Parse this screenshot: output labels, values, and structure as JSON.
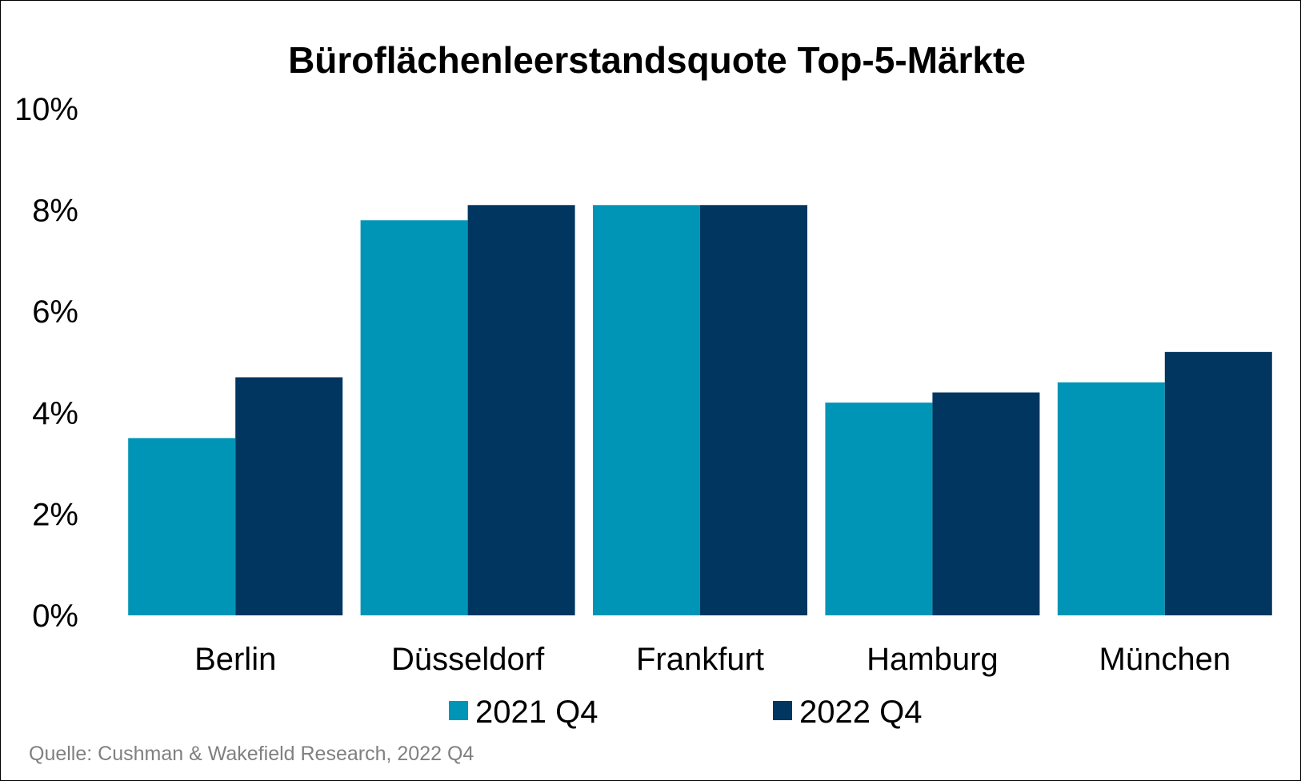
{
  "chart_data": {
    "type": "bar",
    "title": "Büroflächenleerstandsquote Top-5-Märkte",
    "categories": [
      "Berlin",
      "Düsseldorf",
      "Frankfurt",
      "Hamburg",
      "München"
    ],
    "series": [
      {
        "name": "2021 Q4",
        "values": [
          3.5,
          7.8,
          8.1,
          4.2,
          4.6
        ],
        "color": "#0095b6"
      },
      {
        "name": "2022 Q4",
        "values": [
          4.7,
          8.1,
          8.1,
          4.4,
          5.2
        ],
        "color": "#003660"
      }
    ],
    "yticks": [
      "0%",
      "2%",
      "4%",
      "6%",
      "8%",
      "10%"
    ],
    "ylim": [
      0,
      10
    ],
    "grid": false,
    "legend_position": "bottom",
    "source": "Quelle: Cushman & Wakefield Research, 2022 Q4"
  }
}
